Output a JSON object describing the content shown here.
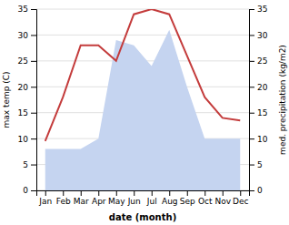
{
  "chart_data": {
    "type": "line",
    "xlabel": "date (month)",
    "ylabel": "max temp (C)",
    "y2label": "med. precipitation (kg/m2)",
    "categories": [
      "Jan",
      "Feb",
      "Mar",
      "Apr",
      "May",
      "Jun",
      "Jul",
      "Aug",
      "Sep",
      "Oct",
      "Nov",
      "Dec"
    ],
    "series": [
      {
        "type": "line",
        "color": "#c43c3c",
        "values": [
          9.5,
          18,
          28,
          28,
          25,
          34,
          35,
          34,
          26,
          18,
          14,
          13.5
        ]
      },
      {
        "type": "area",
        "color": "#c5d4f0",
        "axis": "y2",
        "values": [
          8,
          8,
          8,
          10,
          29,
          28,
          24,
          31,
          20,
          10,
          10,
          10
        ]
      }
    ],
    "ylim": [
      0,
      35
    ],
    "yticks": [
      0,
      5,
      10,
      15,
      20,
      25,
      30,
      35
    ],
    "y2lim": [
      0,
      35
    ],
    "y2ticks": [
      0,
      5,
      10,
      15,
      20,
      25,
      30,
      35
    ],
    "grid": true
  }
}
